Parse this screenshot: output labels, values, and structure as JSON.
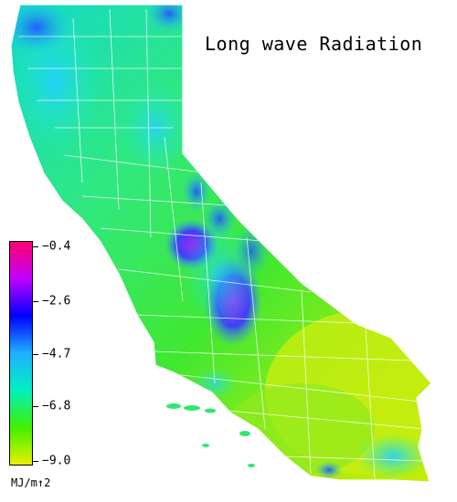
{
  "title": "Long wave Radiation",
  "legend": {
    "unit": "MJ/m↑2",
    "ticks": [
      {
        "value": -0.4,
        "label": "−0.4"
      },
      {
        "value": -2.6,
        "label": "−2.6"
      },
      {
        "value": -4.7,
        "label": "−4.7"
      },
      {
        "value": -6.8,
        "label": "−6.8"
      },
      {
        "value": -9.0,
        "label": "−9.0"
      }
    ],
    "range": [
      -9.0,
      -0.4
    ],
    "colors": [
      "#e8f000",
      "#40f000",
      "#00f0c0",
      "#20b0ff",
      "#0000ff",
      "#c000ff",
      "#ff0070"
    ]
  },
  "map": {
    "region": "California",
    "background_color": "#ffffff",
    "boundary_color": "#ffffff"
  }
}
